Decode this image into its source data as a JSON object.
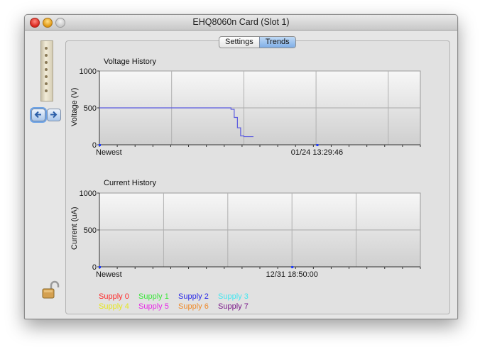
{
  "window": {
    "title": "EHQ8060n Card (Slot 1)"
  },
  "tabs": [
    {
      "label": "Settings",
      "selected": false
    },
    {
      "label": "Trends",
      "selected": true
    }
  ],
  "voltage_chart": {
    "title": "Voltage History",
    "ylabel": "Voltage (V)",
    "y_ticks": [
      "1000",
      "500",
      "0"
    ],
    "x_left_label": "Newest",
    "x_marker_label": "01/24 13:29:46"
  },
  "current_chart": {
    "title": "Current History",
    "ylabel": "Current (uA)",
    "y_ticks": [
      "1000",
      "500",
      "0"
    ],
    "x_left_label": "Newest",
    "x_marker_label": "12/31 18:50:00"
  },
  "legend": [
    {
      "label": "Supply 0",
      "color": "#ff2a2a"
    },
    {
      "label": "Supply 1",
      "color": "#3ce63c"
    },
    {
      "label": "Supply 2",
      "color": "#2a2ae6"
    },
    {
      "label": "Supply 3",
      "color": "#44e6f0"
    },
    {
      "label": "Supply 4",
      "color": "#e6e61e"
    },
    {
      "label": "Supply 5",
      "color": "#e62ae6"
    },
    {
      "label": "Supply 6",
      "color": "#ee8a2a"
    },
    {
      "label": "Supply 7",
      "color": "#7a1a8a"
    }
  ],
  "chart_data": [
    {
      "type": "line",
      "title": "Voltage History",
      "ylabel": "Voltage (V)",
      "ylim": [
        0,
        1000
      ],
      "grid": true,
      "series": [
        {
          "name": "Supply 2",
          "color": "#5a5adf",
          "x": [
            0,
            0.4,
            0.41,
            0.42,
            0.43,
            0.44,
            0.45,
            0.48
          ],
          "values": [
            500,
            500,
            480,
            370,
            230,
            120,
            110,
            110
          ]
        }
      ]
    },
    {
      "type": "line",
      "title": "Current History",
      "ylabel": "Current (uA)",
      "ylim": [
        0,
        1000
      ],
      "grid": true,
      "series": []
    }
  ]
}
